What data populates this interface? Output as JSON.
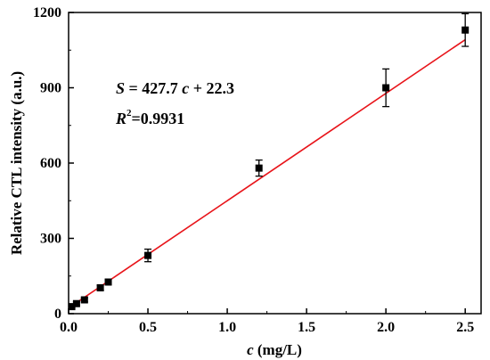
{
  "chart_data": {
    "type": "scatter",
    "xlabel_var": "c",
    "xlabel_unit": " (mg/L)",
    "ylabel": "Relative CTL intensity (a.u.)",
    "xlim": [
      0,
      2.6
    ],
    "ylim": [
      0,
      1200
    ],
    "x_ticks": [
      "0.0",
      "0.5",
      "1.0",
      "1.5",
      "2.0",
      "2.5"
    ],
    "y_ticks": [
      "0",
      "300",
      "600",
      "900",
      "1200"
    ],
    "points": [
      {
        "x": 0.02,
        "y": 28,
        "err": 6
      },
      {
        "x": 0.05,
        "y": 40,
        "err": 7
      },
      {
        "x": 0.1,
        "y": 55,
        "err": 8
      },
      {
        "x": 0.2,
        "y": 103,
        "err": 10
      },
      {
        "x": 0.25,
        "y": 126,
        "err": 10
      },
      {
        "x": 0.5,
        "y": 232,
        "err": 25
      },
      {
        "x": 1.2,
        "y": 580,
        "err": 32
      },
      {
        "x": 2.0,
        "y": 900,
        "err": 75
      },
      {
        "x": 2.5,
        "y": 1130,
        "err": 65
      }
    ],
    "fit": {
      "slope": 427.7,
      "intercept": 22.3,
      "x_range": [
        0,
        2.5
      ],
      "color": "#e8141a"
    },
    "annotations": {
      "eq_s": "S",
      "eq_mid": " = 427.7 ",
      "eq_c": "c",
      "eq_end": " + 22.3",
      "r_label": "R",
      "r_sup": "2",
      "r_value": "=0.9931"
    },
    "grid": false,
    "marker_color": "#000000"
  }
}
